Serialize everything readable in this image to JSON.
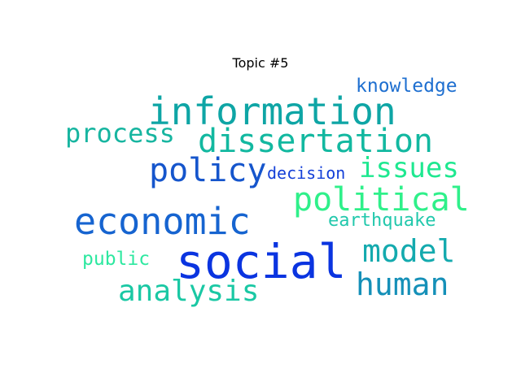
{
  "title": "Topic #5",
  "words": {
    "information": {
      "text": "information",
      "color": "#0ea5a5"
    },
    "knowledge": {
      "text": "knowledge",
      "color": "#1e6fd0"
    },
    "process": {
      "text": "process",
      "color": "#17b5a0"
    },
    "dissertation": {
      "text": "dissertation",
      "color": "#12b8a0"
    },
    "policy": {
      "text": "policy",
      "color": "#1555cc"
    },
    "decision": {
      "text": "decision",
      "color": "#1440d8"
    },
    "issues": {
      "text": "issues",
      "color": "#1ee890"
    },
    "political": {
      "text": "political",
      "color": "#2ff08a"
    },
    "economic": {
      "text": "economic",
      "color": "#1664d0"
    },
    "earthquake": {
      "text": "earthquake",
      "color": "#22c8ac"
    },
    "model": {
      "text": "model",
      "color": "#14aaae"
    },
    "public": {
      "text": "public",
      "color": "#2de8a0"
    },
    "social": {
      "text": "social",
      "color": "#0a34e0"
    },
    "human": {
      "text": "human",
      "color": "#1590b8"
    },
    "analysis": {
      "text": "analysis",
      "color": "#1ac8a4"
    }
  }
}
